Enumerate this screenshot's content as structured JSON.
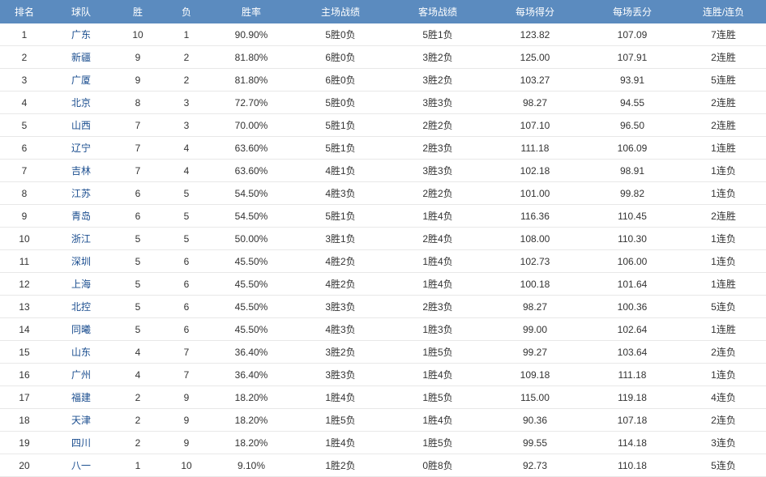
{
  "columns": [
    {
      "key": "rank",
      "label": "排名",
      "class": "col-rank"
    },
    {
      "key": "team",
      "label": "球队",
      "class": "col-team"
    },
    {
      "key": "win",
      "label": "胜",
      "class": "col-win"
    },
    {
      "key": "loss",
      "label": "负",
      "class": "col-loss"
    },
    {
      "key": "pct",
      "label": "胜率",
      "class": "col-pct"
    },
    {
      "key": "home",
      "label": "主场战绩",
      "class": "col-home"
    },
    {
      "key": "away",
      "label": "客场战绩",
      "class": "col-away"
    },
    {
      "key": "ppg",
      "label": "每场得分",
      "class": "col-ppg"
    },
    {
      "key": "papg",
      "label": "每场丢分",
      "class": "col-papg"
    },
    {
      "key": "streak",
      "label": "连胜/连负",
      "class": "col-streak"
    }
  ],
  "rows": [
    {
      "rank": "1",
      "team": "广东",
      "win": "10",
      "loss": "1",
      "pct": "90.90%",
      "home": "5胜0负",
      "away": "5胜1负",
      "ppg": "123.82",
      "papg": "107.09",
      "streak": "7连胜"
    },
    {
      "rank": "2",
      "team": "新疆",
      "win": "9",
      "loss": "2",
      "pct": "81.80%",
      "home": "6胜0负",
      "away": "3胜2负",
      "ppg": "125.00",
      "papg": "107.91",
      "streak": "2连胜"
    },
    {
      "rank": "3",
      "team": "广厦",
      "win": "9",
      "loss": "2",
      "pct": "81.80%",
      "home": "6胜0负",
      "away": "3胜2负",
      "ppg": "103.27",
      "papg": "93.91",
      "streak": "5连胜"
    },
    {
      "rank": "4",
      "team": "北京",
      "win": "8",
      "loss": "3",
      "pct": "72.70%",
      "home": "5胜0负",
      "away": "3胜3负",
      "ppg": "98.27",
      "papg": "94.55",
      "streak": "2连胜"
    },
    {
      "rank": "5",
      "team": "山西",
      "win": "7",
      "loss": "3",
      "pct": "70.00%",
      "home": "5胜1负",
      "away": "2胜2负",
      "ppg": "107.10",
      "papg": "96.50",
      "streak": "2连胜"
    },
    {
      "rank": "6",
      "team": "辽宁",
      "win": "7",
      "loss": "4",
      "pct": "63.60%",
      "home": "5胜1负",
      "away": "2胜3负",
      "ppg": "111.18",
      "papg": "106.09",
      "streak": "1连胜"
    },
    {
      "rank": "7",
      "team": "吉林",
      "win": "7",
      "loss": "4",
      "pct": "63.60%",
      "home": "4胜1负",
      "away": "3胜3负",
      "ppg": "102.18",
      "papg": "98.91",
      "streak": "1连负"
    },
    {
      "rank": "8",
      "team": "江苏",
      "win": "6",
      "loss": "5",
      "pct": "54.50%",
      "home": "4胜3负",
      "away": "2胜2负",
      "ppg": "101.00",
      "papg": "99.82",
      "streak": "1连负"
    },
    {
      "rank": "9",
      "team": "青岛",
      "win": "6",
      "loss": "5",
      "pct": "54.50%",
      "home": "5胜1负",
      "away": "1胜4负",
      "ppg": "116.36",
      "papg": "110.45",
      "streak": "2连胜"
    },
    {
      "rank": "10",
      "team": "浙江",
      "win": "5",
      "loss": "5",
      "pct": "50.00%",
      "home": "3胜1负",
      "away": "2胜4负",
      "ppg": "108.00",
      "papg": "110.30",
      "streak": "1连负"
    },
    {
      "rank": "11",
      "team": "深圳",
      "win": "5",
      "loss": "6",
      "pct": "45.50%",
      "home": "4胜2负",
      "away": "1胜4负",
      "ppg": "102.73",
      "papg": "106.00",
      "streak": "1连负"
    },
    {
      "rank": "12",
      "team": "上海",
      "win": "5",
      "loss": "6",
      "pct": "45.50%",
      "home": "4胜2负",
      "away": "1胜4负",
      "ppg": "100.18",
      "papg": "101.64",
      "streak": "1连胜"
    },
    {
      "rank": "13",
      "team": "北控",
      "win": "5",
      "loss": "6",
      "pct": "45.50%",
      "home": "3胜3负",
      "away": "2胜3负",
      "ppg": "98.27",
      "papg": "100.36",
      "streak": "5连负"
    },
    {
      "rank": "14",
      "team": "同曦",
      "win": "5",
      "loss": "6",
      "pct": "45.50%",
      "home": "4胜3负",
      "away": "1胜3负",
      "ppg": "99.00",
      "papg": "102.64",
      "streak": "1连胜"
    },
    {
      "rank": "15",
      "team": "山东",
      "win": "4",
      "loss": "7",
      "pct": "36.40%",
      "home": "3胜2负",
      "away": "1胜5负",
      "ppg": "99.27",
      "papg": "103.64",
      "streak": "2连负"
    },
    {
      "rank": "16",
      "team": "广州",
      "win": "4",
      "loss": "7",
      "pct": "36.40%",
      "home": "3胜3负",
      "away": "1胜4负",
      "ppg": "109.18",
      "papg": "111.18",
      "streak": "1连负"
    },
    {
      "rank": "17",
      "team": "福建",
      "win": "2",
      "loss": "9",
      "pct": "18.20%",
      "home": "1胜4负",
      "away": "1胜5负",
      "ppg": "115.00",
      "papg": "119.18",
      "streak": "4连负"
    },
    {
      "rank": "18",
      "team": "天津",
      "win": "2",
      "loss": "9",
      "pct": "18.20%",
      "home": "1胜5负",
      "away": "1胜4负",
      "ppg": "90.36",
      "papg": "107.18",
      "streak": "2连负"
    },
    {
      "rank": "19",
      "team": "四川",
      "win": "2",
      "loss": "9",
      "pct": "18.20%",
      "home": "1胜4负",
      "away": "1胜5负",
      "ppg": "99.55",
      "papg": "114.18",
      "streak": "3连负"
    },
    {
      "rank": "20",
      "team": "八一",
      "win": "1",
      "loss": "10",
      "pct": "9.10%",
      "home": "1胜2负",
      "away": "0胜8负",
      "ppg": "92.73",
      "papg": "110.18",
      "streak": "5连负"
    }
  ],
  "colors": {
    "header_bg": "#5b8bbf",
    "header_fg": "#ffffff",
    "team_link": "#1a4d8f",
    "row_border": "#e8e8e8",
    "text": "#333333"
  }
}
